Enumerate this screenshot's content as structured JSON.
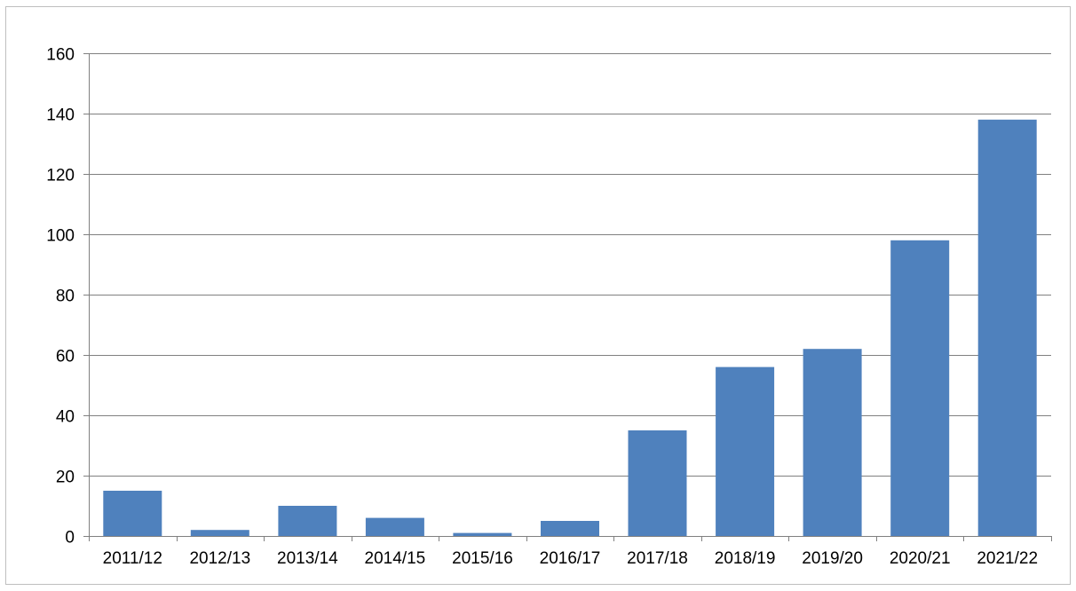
{
  "chart_data": {
    "type": "bar",
    "categories": [
      "2011/12",
      "2012/13",
      "2013/14",
      "2014/15",
      "2015/16",
      "2016/17",
      "2017/18",
      "2018/19",
      "2019/20",
      "2020/21",
      "2021/22"
    ],
    "values": [
      15,
      2,
      10,
      6,
      1,
      5,
      35,
      56,
      62,
      98,
      138
    ],
    "title": "",
    "xlabel": "",
    "ylabel": "",
    "ylim": [
      0,
      160
    ],
    "yticks": [
      "0",
      "20",
      "40",
      "60",
      "80",
      "100",
      "120",
      "140",
      "160"
    ],
    "grid": "horizontal",
    "legend": "none",
    "colors": {
      "bar": "#4f81bd",
      "grid": "#808080",
      "axis": "#808080",
      "border": "#bfbfbf"
    }
  }
}
